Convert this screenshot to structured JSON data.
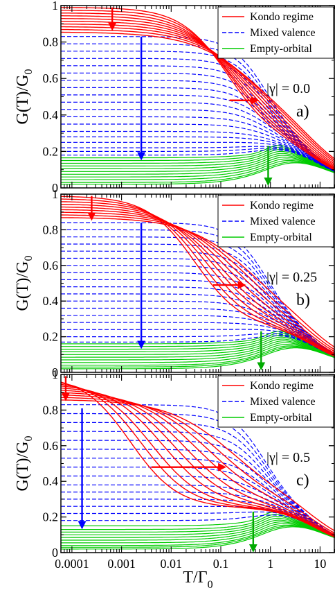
{
  "chart_data": [
    {
      "type": "line",
      "panel": "a)",
      "annotation": "|γ| = 0.0",
      "gamma": 0.0,
      "xlabel": "",
      "ylabel": "G(T)/G",
      "ylabel_sub": "0",
      "xscale": "log",
      "xlim": [
        6e-05,
        20
      ],
      "ylim": [
        0,
        1
      ],
      "yticks": [
        "0",
        "0.2",
        "0.4",
        "0.6",
        "0.8",
        "1"
      ],
      "grid": false,
      "legend_position": "top-right",
      "series": [
        {
          "name": "Kondo regime",
          "color": "#ff0000",
          "style": "solid",
          "plateaus": [
            0.99,
            0.975,
            0.96,
            0.945,
            0.93,
            0.915,
            0.9,
            0.885,
            0.87,
            0.855
          ],
          "crossover_T": [
            0.14,
            0.16,
            0.18,
            0.21,
            0.25,
            0.3,
            0.36,
            0.44,
            0.52,
            0.6
          ]
        },
        {
          "name": "Mixed valence",
          "color": "#0000ff",
          "style": "dashed",
          "plateaus": [
            0.83,
            0.79,
            0.75,
            0.71,
            0.67,
            0.63,
            0.59,
            0.55,
            0.51,
            0.47,
            0.43,
            0.39,
            0.35,
            0.31,
            0.28,
            0.25,
            0.22,
            0.2,
            0.18
          ],
          "crossover_T": 0.8
        },
        {
          "name": "Empty-orbital",
          "color": "#00cc00",
          "style": "solid",
          "plateaus": [
            0.165,
            0.15,
            0.135,
            0.12,
            0.105,
            0.09,
            0.075,
            0.06,
            0.045,
            0.03,
            0.02
          ],
          "bump_T": 1.5
        }
      ],
      "arrows": [
        {
          "color": "#ff0000",
          "from": [
            0.00065,
            0.99
          ],
          "to": [
            0.00065,
            0.87
          ]
        },
        {
          "color": "#0000ff",
          "from": [
            0.0025,
            0.83
          ],
          "to": [
            0.0025,
            0.16
          ]
        },
        {
          "color": "#ff0000",
          "from": [
            0.15,
            0.48
          ],
          "to": [
            0.55,
            0.48
          ]
        },
        {
          "color": "#00aa00",
          "from": [
            0.9,
            0.23
          ],
          "to": [
            0.9,
            0.02
          ]
        }
      ]
    },
    {
      "type": "line",
      "panel": "b)",
      "annotation": "|γ| = 0.25",
      "gamma": 0.25,
      "xlabel": "",
      "ylabel": "G(T)/G",
      "ylabel_sub": "0",
      "xscale": "log",
      "xlim": [
        6e-05,
        20
      ],
      "ylim": [
        0,
        1
      ],
      "yticks": [
        "0",
        "0.2",
        "0.4",
        "0.6",
        "0.8",
        "1"
      ],
      "grid": false,
      "legend_position": "top-right",
      "series": [
        {
          "name": "Kondo regime",
          "color": "#ff0000",
          "style": "solid",
          "plateaus": [
            0.99,
            0.975,
            0.96,
            0.945,
            0.93,
            0.915,
            0.9,
            0.885,
            0.87
          ],
          "crossover_T": [
            0.03,
            0.04,
            0.055,
            0.075,
            0.1,
            0.14,
            0.2,
            0.28,
            0.4
          ]
        },
        {
          "name": "Mixed valence",
          "color": "#0000ff",
          "style": "dashed",
          "plateaus": [
            0.84,
            0.8,
            0.76,
            0.72,
            0.68,
            0.64,
            0.6,
            0.56,
            0.52,
            0.48,
            0.44,
            0.4,
            0.36,
            0.32,
            0.28,
            0.24,
            0.2,
            0.17
          ],
          "crossover_T": 0.8
        },
        {
          "name": "Empty-orbital",
          "color": "#00cc00",
          "style": "solid",
          "plateaus": [
            0.16,
            0.145,
            0.13,
            0.115,
            0.1,
            0.085,
            0.07,
            0.055,
            0.04,
            0.03,
            0.02
          ],
          "bump_T": 1.5
        }
      ],
      "arrows": [
        {
          "color": "#ff0000",
          "from": [
            0.00025,
            0.99
          ],
          "to": [
            0.00025,
            0.86
          ]
        },
        {
          "color": "#0000ff",
          "from": [
            0.0025,
            0.84
          ],
          "to": [
            0.0025,
            0.14
          ]
        },
        {
          "color": "#ff0000",
          "from": [
            0.07,
            0.49
          ],
          "to": [
            0.3,
            0.49
          ]
        },
        {
          "color": "#00aa00",
          "from": [
            0.65,
            0.23
          ],
          "to": [
            0.65,
            0.02
          ]
        }
      ]
    },
    {
      "type": "line",
      "panel": "c)",
      "annotation": "|γ| = 0.5",
      "gamma": 0.5,
      "xlabel": "T/Γ",
      "xlabel_sub": "0",
      "ylabel": "G(T)/G",
      "ylabel_sub": "0",
      "xscale": "log",
      "xlim": [
        6e-05,
        20
      ],
      "ylim": [
        0,
        1
      ],
      "xticks": [
        "0.0001",
        "0.001",
        "0.01",
        "0.1",
        "1",
        "10"
      ],
      "yticks": [
        "0",
        "0.2",
        "0.4",
        "0.6",
        "0.8",
        "1"
      ],
      "grid": false,
      "legend_position": "top-right",
      "series": [
        {
          "name": "Kondo regime",
          "color": "#ff0000",
          "style": "solid",
          "plateaus": [
            0.995,
            0.98,
            0.965,
            0.95,
            0.935,
            0.92,
            0.905,
            0.89,
            0.875,
            0.86
          ],
          "crossover_T": [
            0.0015,
            0.0025,
            0.004,
            0.007,
            0.012,
            0.02,
            0.035,
            0.06,
            0.1,
            0.18
          ]
        },
        {
          "name": "Mixed valence",
          "color": "#0000ff",
          "style": "dashed",
          "plateaus": [
            0.83,
            0.78,
            0.73,
            0.68,
            0.63,
            0.58,
            0.53,
            0.48,
            0.43,
            0.38,
            0.34,
            0.3,
            0.26,
            0.22,
            0.18
          ],
          "crossover_T": 0.7
        },
        {
          "name": "Empty-orbital",
          "color": "#00cc00",
          "style": "solid",
          "plateaus": [
            0.15,
            0.13,
            0.115,
            0.1,
            0.085,
            0.07,
            0.055,
            0.04,
            0.03,
            0.02
          ],
          "bump_T": 1.2
        }
      ],
      "arrows": [
        {
          "color": "#ff0000",
          "from": [
            7.5e-05,
            0.99
          ],
          "to": [
            7.5e-05,
            0.86
          ]
        },
        {
          "color": "#0000ff",
          "from": [
            0.00016,
            0.81
          ],
          "to": [
            0.00016,
            0.14
          ]
        },
        {
          "color": "#ff0000",
          "from": [
            0.004,
            0.48
          ],
          "to": [
            0.12,
            0.48
          ]
        },
        {
          "color": "#00aa00",
          "from": [
            0.45,
            0.23
          ],
          "to": [
            0.45,
            0.01
          ]
        }
      ]
    }
  ]
}
